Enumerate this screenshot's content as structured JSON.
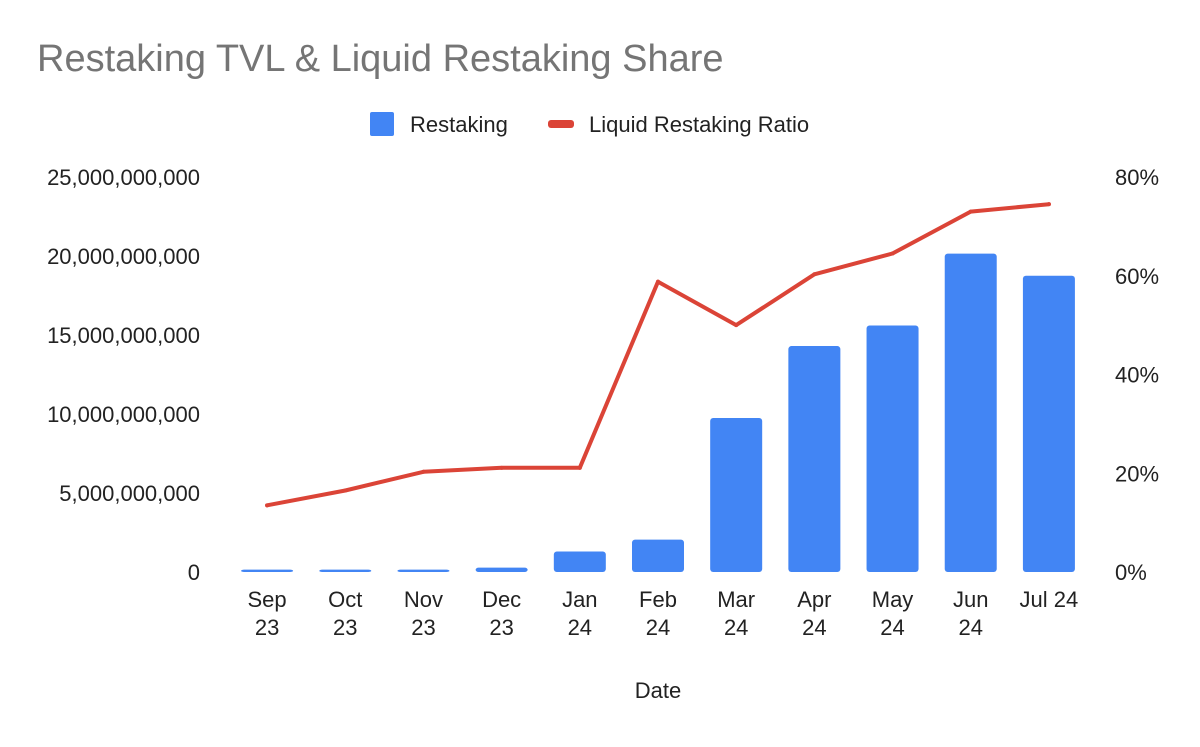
{
  "chart_data": {
    "type": "bar",
    "title": "Restaking TVL & Liquid Restaking Share",
    "xlabel": "Date",
    "ylabel": "",
    "ylabel_right": "",
    "legend_position": "top",
    "grid": false,
    "categories": [
      [
        "Sep",
        "23"
      ],
      [
        "Oct",
        "23"
      ],
      [
        "Nov",
        "23"
      ],
      [
        "Dec",
        "23"
      ],
      [
        "Jan",
        "24"
      ],
      [
        "Feb",
        "24"
      ],
      [
        "Mar",
        "24"
      ],
      [
        "Apr",
        "24"
      ],
      [
        "May",
        "24"
      ],
      [
        "Jun",
        "24"
      ],
      [
        "Jul 24"
      ]
    ],
    "ylim": [
      0,
      25000000000
    ],
    "y_ticks": [
      "0",
      "5,000,000,000",
      "10,000,000,000",
      "15,000,000,000",
      "20,000,000,000",
      "25,000,000,000"
    ],
    "y_tick_values": [
      0,
      5000000000,
      10000000000,
      15000000000,
      20000000000,
      25000000000
    ],
    "y2lim": [
      0,
      80
    ],
    "y2_ticks": [
      "0%",
      "20%",
      "40%",
      "60%",
      "80%"
    ],
    "y2_tick_values": [
      0,
      20,
      40,
      60,
      80
    ],
    "series": [
      {
        "name": "Restaking",
        "type": "bar",
        "axis": "left",
        "color": "#4285F4",
        "values": [
          150000000,
          150000000,
          150000000,
          280000000,
          1300000000,
          2050000000,
          9750000000,
          14300000000,
          15600000000,
          20150000000,
          18750000000
        ]
      },
      {
        "name": "Liquid Restaking Ratio",
        "type": "line",
        "axis": "right",
        "unit": "%",
        "color": "#DB4437",
        "values": [
          13.5,
          16.5,
          20.3,
          21.1,
          21.1,
          58.8,
          50.0,
          60.3,
          64.5,
          73.0,
          74.5
        ]
      }
    ]
  }
}
